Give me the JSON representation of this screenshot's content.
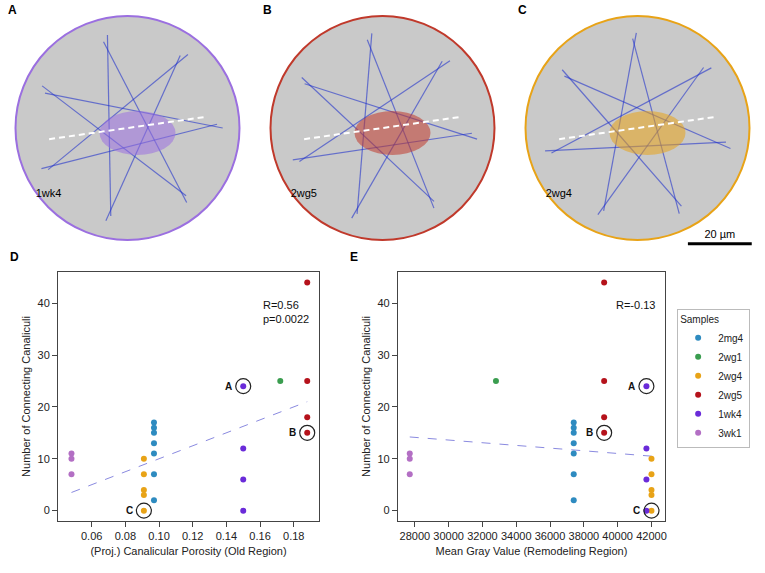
{
  "image_panels": [
    {
      "letter": "A",
      "sample": "1wk4",
      "color": "#9b6fe0"
    },
    {
      "letter": "B",
      "sample": "2wg5",
      "color": "#c0392b"
    },
    {
      "letter": "C",
      "sample": "2wg4",
      "color": "#e8a317",
      "scale_bar": "20 µm"
    }
  ],
  "chart_data": [
    {
      "type": "scatter",
      "letter": "D",
      "x_label": "(Proj.) Canalicular Porosity (Old Region)",
      "y_label": "Number of Connecting Canaliculi",
      "xlim": [
        0.04,
        0.195
      ],
      "xticks": [
        0.06,
        0.08,
        {
          "value": 0.1,
          "label": "0.10"
        },
        0.12,
        0.14,
        0.16,
        0.18
      ],
      "ylim": [
        -2,
        46
      ],
      "yticks": [
        0,
        10,
        20,
        30,
        40
      ],
      "annotation": [
        "R=0.56",
        "p=0.0022"
      ],
      "trend": {
        "x": [
          0.048,
          0.188
        ],
        "y": [
          3.5,
          21
        ],
        "line_style": "dash",
        "color": "#8a8ae0"
      },
      "highlights": [
        {
          "label": "A",
          "x": 0.15,
          "y": 24
        },
        {
          "label": "B",
          "x": 0.188,
          "y": 15
        },
        {
          "label": "C",
          "x": 0.091,
          "y": 0
        }
      ],
      "series": [
        {
          "name": "2mg4",
          "color": "#2e8bc0",
          "x": [
            0.097,
            0.097,
            0.097,
            0.097,
            0.097,
            0.097,
            0.097
          ],
          "values": [
            17,
            16,
            15,
            13,
            11,
            7,
            2
          ]
        },
        {
          "name": "2wg1",
          "color": "#3a9d4f",
          "x": [
            0.172
          ],
          "values": [
            25
          ]
        },
        {
          "name": "2wg4",
          "color": "#e8a317",
          "x": [
            0.091,
            0.091,
            0.091,
            0.091,
            0.091
          ],
          "values": [
            10,
            7,
            4,
            3,
            0
          ]
        },
        {
          "name": "2wg5",
          "color": "#b5121b",
          "x": [
            0.188,
            0.188,
            0.188,
            0.188
          ],
          "values": [
            44,
            25,
            18,
            15
          ]
        },
        {
          "name": "1wk4",
          "color": "#6a2bd9",
          "x": [
            0.15,
            0.15,
            0.15,
            0.15
          ],
          "values": [
            24,
            12,
            6,
            0
          ]
        },
        {
          "name": "3wk1",
          "color": "#b36fc4",
          "x": [
            0.048,
            0.048,
            0.048
          ],
          "values": [
            11,
            10,
            7
          ]
        }
      ]
    },
    {
      "type": "scatter",
      "letter": "E",
      "x_label": "Mean Gray Value (Remodeling Region)",
      "y_label": "Number of Connecting Canaliculi",
      "xlim": [
        27000,
        42800
      ],
      "xticks": [
        28000,
        30000,
        32000,
        34000,
        36000,
        38000,
        40000,
        42000
      ],
      "ylim": [
        -2,
        46
      ],
      "yticks": [
        0,
        10,
        20,
        30,
        40
      ],
      "annotation": [
        "R=-0.13"
      ],
      "legend": "right",
      "legend_title": "Samples",
      "trend": {
        "x": [
          27700,
          42000
        ],
        "y": [
          14.2,
          10.5
        ],
        "line_style": "dash",
        "color": "#8a8ae0"
      },
      "highlights": [
        {
          "label": "A",
          "x": 41700,
          "y": 24
        },
        {
          "label": "B",
          "x": 39200,
          "y": 15
        },
        {
          "label": "C",
          "x": 42000,
          "y": 0
        }
      ],
      "series": [
        {
          "name": "2mg4",
          "color": "#2e8bc0",
          "x": [
            37400,
            37400,
            37400,
            37400,
            37400,
            37400,
            37400
          ],
          "values": [
            17,
            16,
            15,
            13,
            11,
            7,
            2
          ]
        },
        {
          "name": "2wg1",
          "color": "#3a9d4f",
          "x": [
            32800
          ],
          "values": [
            25
          ]
        },
        {
          "name": "2wg4",
          "color": "#e8a317",
          "x": [
            42000,
            42000,
            42000,
            42000,
            42000
          ],
          "values": [
            10,
            7,
            4,
            3,
            0
          ]
        },
        {
          "name": "2wg5",
          "color": "#b5121b",
          "x": [
            39200,
            39200,
            39200,
            39200
          ],
          "values": [
            44,
            25,
            18,
            15
          ]
        },
        {
          "name": "1wk4",
          "color": "#6a2bd9",
          "x": [
            41700,
            41700,
            41700,
            41700
          ],
          "values": [
            24,
            12,
            6,
            0
          ]
        },
        {
          "name": "3wk1",
          "color": "#b36fc4",
          "x": [
            27700,
            27700,
            27700
          ],
          "values": [
            11,
            10,
            7
          ]
        }
      ]
    }
  ]
}
